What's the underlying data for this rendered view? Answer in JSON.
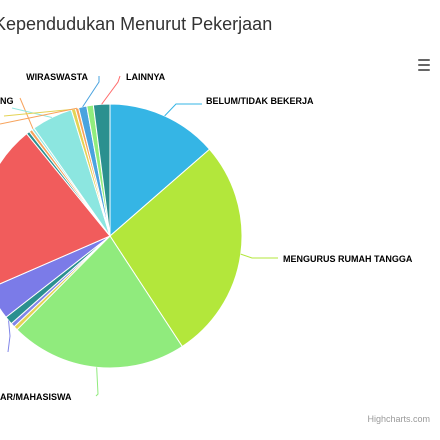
{
  "title": "Kependudukan Menurut Pekerjaan",
  "credits": "Highcharts.com",
  "menu_icon": "hamburger-menu-icon",
  "chart_data": {
    "type": "pie",
    "title": "Kependudukan Menurut Pekerjaan",
    "slices": [
      {
        "name": "BELUM/TIDAK BEKERJA",
        "value": 13.5,
        "color": "#35b5e5"
      },
      {
        "name": "MENGURUS RUMAH TANGGA",
        "value": 27.0,
        "color": "#b3e73b"
      },
      {
        "name": "PELAJAR/MAHASISWA",
        "value": 21.5,
        "color": "#90eb7d"
      },
      {
        "name": "",
        "value": 0.5,
        "color": "#e4d354"
      },
      {
        "name": "",
        "value": 0.5,
        "color": "#8085e8"
      },
      {
        "name": "",
        "value": 1.0,
        "color": "#2b908f"
      },
      {
        "name": "",
        "value": 4.0,
        "color": "#7b7be8"
      },
      {
        "name": "",
        "value": 20.5,
        "color": "#f15c5c"
      },
      {
        "name": "",
        "value": 0.4,
        "color": "#2b908f"
      },
      {
        "name": "",
        "value": 0.4,
        "color": "#f7a35c"
      },
      {
        "name": "",
        "value": 0.3,
        "color": "#91e8e1"
      },
      {
        "name": "",
        "value": 5.0,
        "color": "#8ce6e0"
      },
      {
        "name": "",
        "value": 0.5,
        "color": "#e4d354"
      },
      {
        "name": "",
        "value": 0.4,
        "color": "#f7a35c"
      },
      {
        "name": "WIRASWASTA",
        "value": 1.0,
        "color": "#4aa3df"
      },
      {
        "name": "",
        "value": 0.8,
        "color": "#90ed7d"
      },
      {
        "name": "LAINNYA",
        "value": 2.0,
        "color": "#2b908f"
      }
    ],
    "visible_labels": [
      "BELUM/TIDAK BEKERJA",
      "MENGURUS RUMAH TANGGA",
      "AR/MAHASISWA",
      "WIRASWASTA",
      "LAINNYA",
      "NG"
    ]
  }
}
